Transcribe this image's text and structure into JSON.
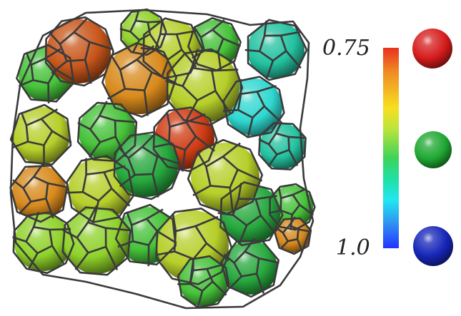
{
  "colorbar": {
    "label_top": "0.75",
    "label_bottom": "1.0",
    "gradient_stops": [
      "#e8321f",
      "#f08a24",
      "#f7e020",
      "#bfe43a",
      "#3ed35a",
      "#1fe0a8",
      "#22e7f0",
      "#2f8ff2",
      "#2234ff"
    ]
  },
  "legend_spheres": [
    {
      "name": "red",
      "color": "#d61c1c"
    },
    {
      "name": "green",
      "color": "#1fa832"
    },
    {
      "name": "blue",
      "color": "#1626b8"
    }
  ],
  "cluster_sphere_colors": {
    "dark_orange": "#c8561a",
    "orange": "#d88a1c",
    "red_orange": "#cf3c14",
    "yellow_green": "#b7cf2a",
    "lime": "#8fd22a",
    "green": "#46c23a",
    "dark_green": "#27a83e",
    "cyan": "#2fd8d0",
    "teal": "#23c2a0"
  },
  "frame_color": "#3a3a3a"
}
